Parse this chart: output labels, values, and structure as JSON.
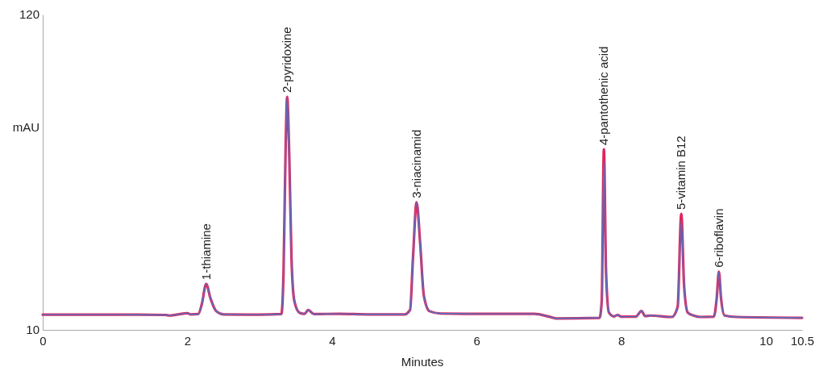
{
  "chart_data": {
    "type": "line",
    "xlabel": "Minutes",
    "ylabel": "mAU",
    "xlim": [
      0,
      10.5
    ],
    "ylim": [
      10,
      120
    ],
    "xticks": [
      0,
      2,
      4,
      6,
      8,
      10,
      10.5
    ],
    "yticks": [
      10,
      120
    ],
    "grid": false,
    "marker": "none",
    "line_style": "solid",
    "x": [
      0,
      1.0,
      1.7,
      1.75,
      1.85,
      2.0,
      2.05,
      2.15,
      2.2,
      2.26,
      2.32,
      2.4,
      2.5,
      3.0,
      3.3,
      3.33,
      3.36,
      3.38,
      3.41,
      3.44,
      3.48,
      3.55,
      3.62,
      3.67,
      3.75,
      4.1,
      4.5,
      5.0,
      5.08,
      5.12,
      5.17,
      5.22,
      5.27,
      5.35,
      5.5,
      6.0,
      6.8,
      7.0,
      7.1,
      7.7,
      7.73,
      7.76,
      7.79,
      7.83,
      7.9,
      7.95,
      8.0,
      8.2,
      8.28,
      8.33,
      8.4,
      8.7,
      8.78,
      8.83,
      8.87,
      8.92,
      9.0,
      9.1,
      9.28,
      9.32,
      9.35,
      9.38,
      9.43,
      9.6,
      10.5
    ],
    "series": [
      {
        "color": "#e0245c",
        "values": [
          15.3,
          15.3,
          15.2,
          15.0,
          15.3,
          15.8,
          15.4,
          15.5,
          19,
          26.0,
          21,
          16.5,
          15.4,
          15.3,
          15.5,
          30,
          75,
          91.3,
          70,
          35,
          20,
          16,
          15.6,
          16.9,
          15.5,
          15.6,
          15.4,
          15.4,
          17,
          35,
          54.5,
          40,
          22,
          16.5,
          15.7,
          15.6,
          15.6,
          14.6,
          14.0,
          14.2,
          20,
          73.0,
          30,
          16,
          14.7,
          15.2,
          14.6,
          14.6,
          16.6,
          14.8,
          15.0,
          14.5,
          18,
          50.5,
          25,
          16,
          15.0,
          14.5,
          14.6,
          21,
          30.3,
          21,
          15,
          14.5,
          14.2
        ]
      },
      {
        "color": "#4a78c8",
        "values": [
          15.3,
          15.3,
          15.2,
          15.0,
          15.3,
          15.8,
          15.4,
          15.5,
          19,
          26.0,
          21,
          16.5,
          15.4,
          15.3,
          15.5,
          30,
          75,
          91.3,
          70,
          35,
          20,
          16,
          15.6,
          16.9,
          15.5,
          15.6,
          15.4,
          15.4,
          17,
          35,
          54.5,
          40,
          22,
          16.5,
          15.7,
          15.6,
          15.6,
          14.6,
          14.0,
          14.2,
          20,
          68.8,
          30,
          16,
          14.7,
          15.2,
          14.6,
          14.6,
          16.6,
          14.8,
          15.0,
          14.5,
          18,
          48.3,
          25,
          16,
          15.0,
          14.5,
          14.6,
          21,
          30.3,
          21,
          15,
          14.5,
          14.2
        ]
      }
    ],
    "annotations": [
      {
        "text": "1-thiamine",
        "x": 2.26,
        "y": 26.0
      },
      {
        "text": "2-pyridoxine",
        "x": 3.38,
        "y": 91.3
      },
      {
        "text": "3-niacinamid",
        "x": 5.17,
        "y": 54.5
      },
      {
        "text": "4-pantothenic acid",
        "x": 7.76,
        "y": 73.0
      },
      {
        "text": "5-vitamin B12",
        "x": 8.83,
        "y": 50.5
      },
      {
        "text": "6-riboflavin",
        "x": 9.35,
        "y": 30.3
      }
    ]
  }
}
